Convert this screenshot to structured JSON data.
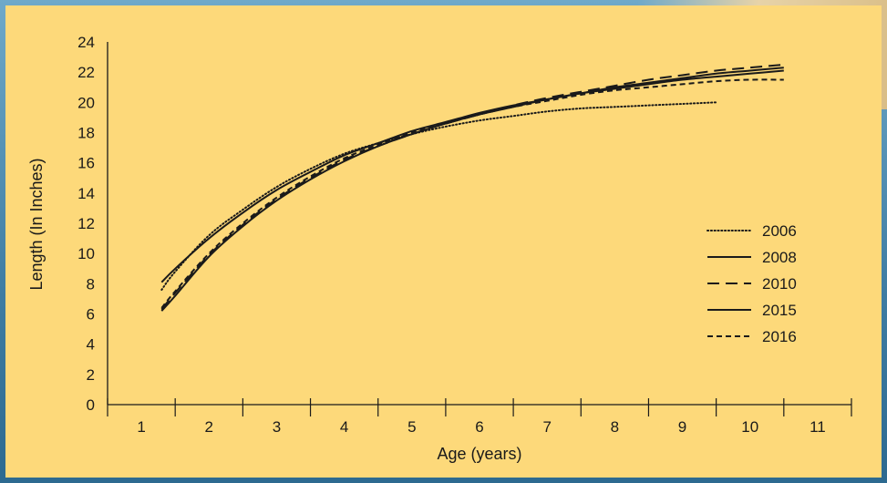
{
  "chart_data": {
    "type": "line",
    "xlabel": "Age (years)",
    "ylabel": "Length (In Inches)",
    "xlim": [
      0.5,
      11.5
    ],
    "ylim": [
      0,
      24
    ],
    "x_ticks": [
      1,
      2,
      3,
      4,
      5,
      6,
      7,
      8,
      9,
      10,
      11
    ],
    "y_ticks": [
      0,
      2,
      4,
      6,
      8,
      10,
      12,
      14,
      16,
      18,
      20,
      22,
      24
    ],
    "legend_position": "right",
    "grid": false,
    "line_color": "#1a1a1a",
    "series": [
      {
        "name": "2006",
        "dash": "dotted",
        "x": [
          1.3,
          1.5,
          2,
          2.5,
          3,
          3.5,
          4,
          4.5,
          5,
          5.5,
          6,
          6.5,
          7,
          7.5,
          8,
          8.5,
          9,
          9.5
        ],
        "y": [
          7.6,
          8.8,
          11.2,
          12.9,
          14.4,
          15.6,
          16.6,
          17.3,
          17.9,
          18.4,
          18.8,
          19.1,
          19.4,
          19.6,
          19.7,
          19.8,
          19.9,
          20.0
        ]
      },
      {
        "name": "2008",
        "dash": "solid",
        "x": [
          1.3,
          1.5,
          2,
          2.5,
          3,
          3.5,
          4,
          4.5,
          5,
          5.5,
          6,
          6.5,
          7,
          7.5,
          8,
          8.5,
          9,
          9.5,
          10,
          10.5
        ],
        "y": [
          8.1,
          9.0,
          11.0,
          12.7,
          14.2,
          15.4,
          16.5,
          17.3,
          18.1,
          18.7,
          19.3,
          19.8,
          20.2,
          20.6,
          20.9,
          21.2,
          21.5,
          21.7,
          21.9,
          22.1
        ]
      },
      {
        "name": "2010",
        "dash": "long-dash",
        "x": [
          1.3,
          1.5,
          2,
          2.5,
          3,
          3.5,
          4,
          4.5,
          5,
          5.5,
          6,
          6.5,
          7,
          7.5,
          8,
          8.5,
          9,
          9.5,
          10,
          10.5
        ],
        "y": [
          6.3,
          7.4,
          9.9,
          11.9,
          13.6,
          15.0,
          16.2,
          17.1,
          17.9,
          18.6,
          19.2,
          19.8,
          20.3,
          20.7,
          21.1,
          21.5,
          21.8,
          22.1,
          22.3,
          22.5
        ]
      },
      {
        "name": "2015",
        "dash": "solid",
        "x": [
          1.3,
          1.5,
          2,
          2.5,
          3,
          3.5,
          4,
          4.5,
          5,
          5.5,
          6,
          6.5,
          7,
          7.5,
          8,
          8.5,
          9,
          9.5,
          10,
          10.5
        ],
        "y": [
          6.2,
          7.2,
          9.8,
          11.8,
          13.5,
          14.9,
          16.1,
          17.1,
          17.9,
          18.6,
          19.2,
          19.7,
          20.2,
          20.6,
          21.0,
          21.3,
          21.6,
          21.9,
          22.1,
          22.3
        ]
      },
      {
        "name": "2016",
        "dash": "short-dash",
        "x": [
          1.3,
          1.5,
          2,
          2.5,
          3,
          3.5,
          4,
          4.5,
          5,
          5.5,
          6,
          6.5,
          7,
          7.5,
          8,
          8.5,
          9,
          9.5,
          10,
          10.5
        ],
        "y": [
          6.4,
          7.5,
          10.0,
          12.0,
          13.7,
          15.1,
          16.3,
          17.2,
          18.0,
          18.6,
          19.2,
          19.7,
          20.1,
          20.5,
          20.8,
          21.0,
          21.2,
          21.4,
          21.5,
          21.5
        ]
      }
    ]
  }
}
